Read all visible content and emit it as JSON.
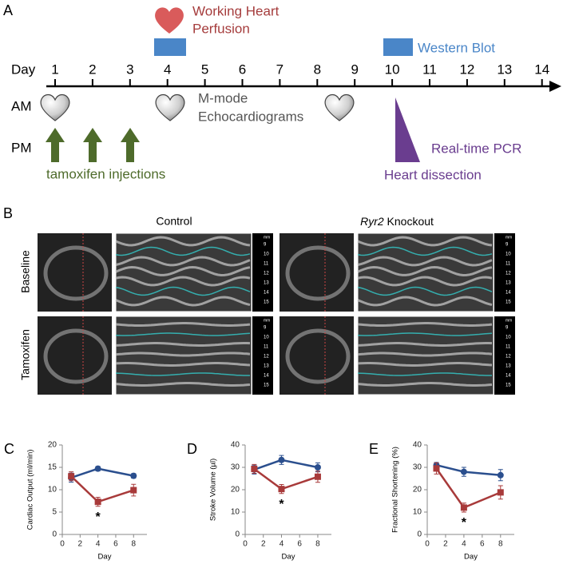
{
  "panel_a": {
    "letter": "A",
    "day_label": "Day",
    "days": [
      1,
      2,
      3,
      4,
      5,
      6,
      7,
      8,
      9,
      10,
      11,
      12,
      13,
      14
    ],
    "am": "AM",
    "pm": "PM",
    "working_heart": [
      "Working Heart",
      "Perfusion"
    ],
    "western_blot": "Western Blot",
    "echo": [
      "M-mode",
      "Echocardiograms"
    ],
    "injections": "tamoxifen injections",
    "pcr": "Real-time PCR",
    "dissection": "Heart dissection"
  },
  "panel_b": {
    "letter": "B",
    "control": "Control",
    "knockout_gene": "Ryr2",
    "knockout": "Knockout",
    "rows": [
      "Baseline",
      "Tamoxifen"
    ],
    "scale_unit": "mm",
    "scale_labels": [
      "9",
      "10",
      "11",
      "12",
      "13",
      "14",
      "15"
    ]
  },
  "chart_data": [
    {
      "type": "line",
      "panel": "C",
      "y_label": "Cardiac Output (ml/min)",
      "x_label": "Day",
      "x": [
        1,
        4,
        8
      ],
      "xlim": [
        0,
        9.5
      ],
      "xticks": [
        0,
        2,
        4,
        6,
        8
      ],
      "ylim": [
        0,
        20
      ],
      "yticks": [
        0,
        5,
        10,
        15,
        20
      ],
      "series": [
        {
          "color": "#2b4f8e",
          "marker": "circle",
          "values": [
            12.7,
            14.7,
            13.1
          ],
          "errors": [
            1.0,
            0.5,
            0.5
          ]
        },
        {
          "color": "#a83a3a",
          "marker": "square",
          "values": [
            13.0,
            7.3,
            9.9
          ],
          "errors": [
            1.0,
            1.0,
            1.3
          ]
        }
      ],
      "annotations": [
        {
          "text": "*",
          "x": 4
        }
      ]
    },
    {
      "type": "line",
      "panel": "D",
      "y_label": "Stroke Volume (µl)",
      "x_label": "Day",
      "x": [
        1,
        4,
        8
      ],
      "xlim": [
        0,
        9.5
      ],
      "xticks": [
        0,
        2,
        4,
        6,
        8
      ],
      "ylim": [
        0,
        40
      ],
      "yticks": [
        0,
        10,
        20,
        30,
        40
      ],
      "series": [
        {
          "color": "#2b4f8e",
          "marker": "circle",
          "values": [
            29.0,
            33.3,
            30.0
          ],
          "errors": [
            2.0,
            2.0,
            2.0
          ]
        },
        {
          "color": "#a83a3a",
          "marker": "square",
          "values": [
            29.3,
            20.3,
            25.8
          ],
          "errors": [
            2.0,
            2.0,
            2.5
          ]
        }
      ],
      "annotations": [
        {
          "text": "*",
          "x": 4
        }
      ]
    },
    {
      "type": "line",
      "panel": "E",
      "y_label": "Fractional Shortening (%)",
      "x_label": "Day",
      "x": [
        1,
        4,
        8
      ],
      "xlim": [
        0,
        9.5
      ],
      "xticks": [
        0,
        2,
        4,
        6,
        8
      ],
      "ylim": [
        0,
        40
      ],
      "yticks": [
        0,
        10,
        20,
        30,
        40
      ],
      "series": [
        {
          "color": "#2b4f8e",
          "marker": "circle",
          "values": [
            31.0,
            28.0,
            26.5
          ],
          "errors": [
            1.2,
            2.0,
            2.5
          ]
        },
        {
          "color": "#a83a3a",
          "marker": "square",
          "values": [
            29.5,
            12.0,
            18.8
          ],
          "errors": [
            2.5,
            2.0,
            3.0
          ]
        }
      ],
      "annotations": [
        {
          "text": "*",
          "x": 4
        }
      ]
    }
  ]
}
